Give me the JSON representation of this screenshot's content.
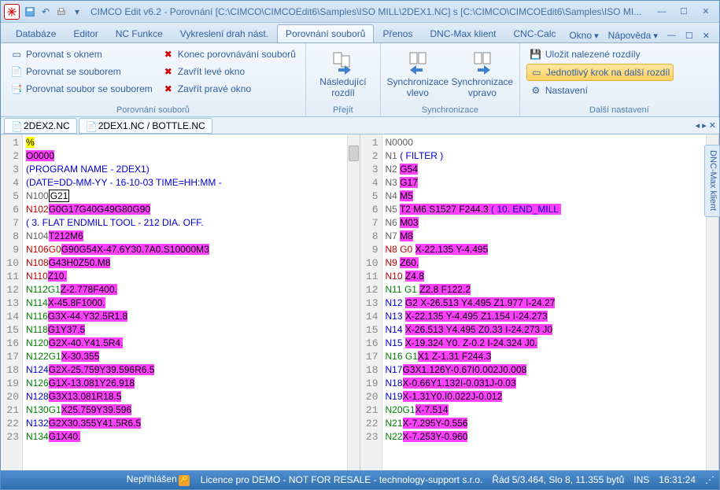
{
  "title": "CIMCO Edit v6.2 - Porovnání [C:\\CIMCO\\CIMCOEdit6\\Samples\\ISO MILL\\2DEX1.NC] s [C:\\CIMCO\\CIMCOEdit6\\Samples\\ISO MI...",
  "tabs": {
    "t1": "Databáze",
    "t2": "Editor",
    "t3": "NC Funkce",
    "t4": "Vykreslení drah nást.",
    "t5": "Porovnání souborů",
    "t6": "Přenos",
    "t7": "DNC-Max klient",
    "t8": "CNC-Calc",
    "okno": "Okno",
    "napoveda": "Nápověda"
  },
  "ribbon": {
    "g1_label": "Porovnání souborů",
    "b_okno": "Porovnat s oknem",
    "b_soubor": "Porovnat se souborem",
    "b_ss": "Porovnat soubor se souborem",
    "b_konec": "Konec porovnávání souborů",
    "b_zleve": "Zavřít levé okno",
    "b_zprave": "Zavřít pravé okno",
    "g2_label": "Přejít",
    "b_nasled1": "Následující",
    "b_nasled2": "rozdíl",
    "g3_label": "Synchronizace",
    "b_sync_l1": "Synchronizace",
    "b_sync_l2": "vlevo",
    "b_sync_r1": "Synchronizace",
    "b_sync_r2": "vpravo",
    "g4_label": "Další nastavení",
    "b_uloz": "Uložit nalezené rozdíly",
    "b_krok": "Jednotlivý krok na další rozdíl",
    "b_nast": "Nastavení"
  },
  "doctabs": {
    "d1": "2DEX2.NC",
    "d2": "2DEX1.NC / BOTTLE.NC",
    "nav": "◂ ▸ ✕"
  },
  "sidebar": "DNC-Max klient",
  "left": {
    "lines": [
      "1",
      "2",
      "3",
      "4",
      "5",
      "6",
      "7",
      "8",
      "9",
      "10",
      "11",
      "12",
      "13",
      "14",
      "15",
      "16",
      "17",
      "18",
      "19",
      "20",
      "21",
      "22",
      "23"
    ],
    "l1a": "%",
    "l2a": "O0000",
    "l3a": "(PROGRAM NAME - 2DEX1)",
    "l4a": "(DATE=DD-MM-YY - 16-10-03 TIME=HH:MM -",
    "l5a": "N100",
    "l5b": "G21",
    "l6a": "N102",
    "l6b": "G0G17G40G49G80G90",
    "l7a": "( 3. FLAT ENDMILL TOOL - 212 DIA. OFF.",
    "l8a": "N104",
    "l8b": "T212M6",
    "l9a": "N106",
    "l9b": "G0",
    "l9c": "G90G54X-47.6Y30.7A0.S10000M3",
    "l10a": "N108",
    "l10b": "G43H0Z50.M8",
    "l11a": "N110",
    "l11b": "Z10.",
    "l12a": "N112",
    "l12b": "G1",
    "l12c": "Z-2.778F400.",
    "l13a": "N114",
    "l13b": "X-45.8F1000.",
    "l14a": "N116",
    "l14b": "G3X-44.Y32.5R1.8",
    "l15a": "N118",
    "l15b": "G1Y37.5",
    "l16a": "N120",
    "l16b": "G2X-40.Y41.5R4.",
    "l17a": "N122",
    "l17b": "G1",
    "l17c": "X-30.355",
    "l18a": "N124",
    "l18b": "G2X-25.759Y39.596R6.5",
    "l19a": "N126",
    "l19b": "G1X-13.081Y26.918",
    "l20a": "N128",
    "l20b": "G3X13.081R18.5",
    "l21a": "N130",
    "l21b": "G1",
    "l21c": "X25.759Y39.596",
    "l22a": "N132",
    "l22b": "G2X30.355Y41.5R6.5",
    "l23a": "N134",
    "l23b": "G1X40."
  },
  "right": {
    "lines": [
      "1",
      "2",
      "3",
      "4",
      "5",
      "6",
      "7",
      "8",
      "9",
      "10",
      "11",
      "12",
      "13",
      "14",
      "15",
      "16",
      "17",
      "18",
      "19",
      "20",
      "21",
      "22",
      "23"
    ],
    "l1a": "N0000",
    "l2a": "N1 ",
    "l2b": "( FILTER )",
    "l3a": "N2 ",
    "l3b": "G54",
    "l4a": "N3 ",
    "l4b": "G17",
    "l5a": "N4 ",
    "l5b": "M5",
    "l6a": "N5 ",
    "l6b": "T2 M6 S1527 F244.3 ",
    "l6c": "( 10. END_MILL ",
    "l7a": "N6 ",
    "l7b": "M03",
    "l8a": "N7 ",
    "l8b": "M8",
    "l9a": "N8 ",
    "l9b": "G0 ",
    "l9c": "X-22.135 Y-4.495",
    "l10a": "N9 ",
    "l10b": "Z60.",
    "l11a": "N10 ",
    "l11b": "Z4.8",
    "l12a": "N11 ",
    "l12b": "G1 ",
    "l12c": "Z2.8 F122.2",
    "l13a": "N12 ",
    "l13b": "G2 X-26.513 Y4.495 Z1.977 I-24.27",
    "l14a": "N13 ",
    "l14b": "X-22.135 Y-4.495 Z1.154 I-24.273",
    "l15a": "N14 ",
    "l15b": "X-26.513 Y4.495 Z0.33 I-24.273 J0",
    "l16a": "N15 ",
    "l16b": "X-19.324 Y0. Z-0.2 I-24.324 J0.",
    "l17a": "N16 ",
    "l17b": "G1",
    "l17c": "X1 Z-1.31 F244.3",
    "l18a": "N17",
    "l18b": "G3X1.126Y-0.67I0.002J0.008",
    "l19a": "N18",
    "l19b": "X-0.66Y1.132I-0.031J-0.03",
    "l20a": "N19",
    "l20b": "X-1.31Y0.I0.022J-0.012",
    "l21a": "N20",
    "l21b": "G1",
    "l21c": "X-7.514",
    "l22a": "N21",
    "l22b": "X-7.295Y-0.556",
    "l23a": "N22",
    "l23b": "X-7.253Y-0.960"
  },
  "status": {
    "login": "Nepřihlášen",
    "lic": "Licence pro DEMO - NOT FOR RESALE - technology-support s.r.o.",
    "pos": "Řád 5/3.464, Slo 8, 11.355 bytů",
    "ins": "INS",
    "time": "16:31:24"
  }
}
